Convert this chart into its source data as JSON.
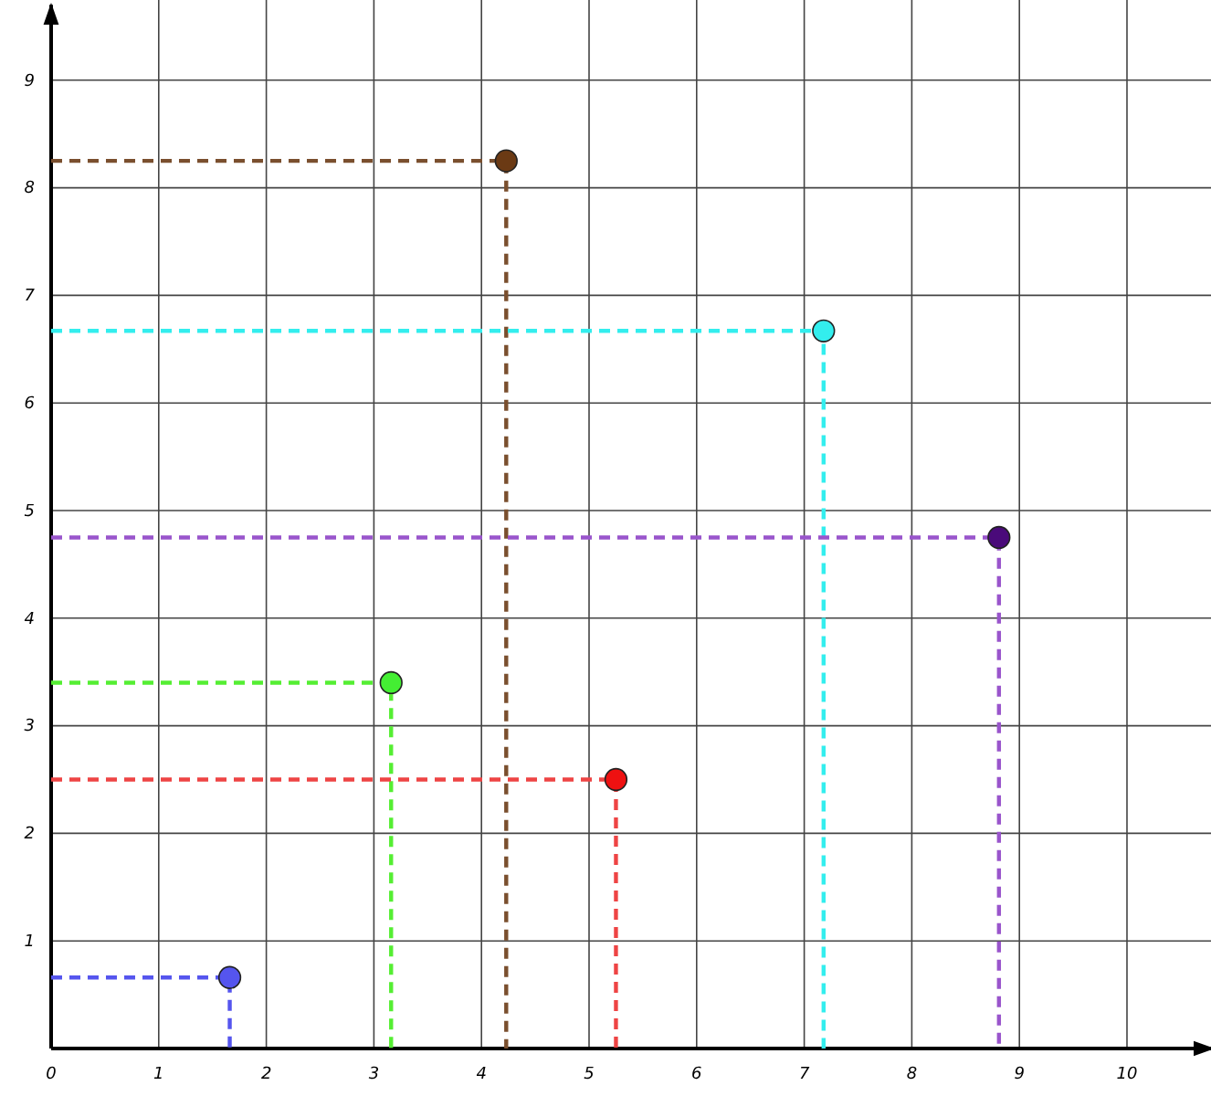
{
  "chart_data": {
    "type": "scatter",
    "xlim": [
      0,
      10.8
    ],
    "ylim": [
      0,
      9.7
    ],
    "xticks": [
      0,
      1,
      2,
      3,
      4,
      5,
      6,
      7,
      8,
      9,
      10
    ],
    "yticks": [
      {
        "value": 0,
        "label": null
      },
      1,
      2,
      3,
      4,
      5,
      6,
      7,
      8,
      9
    ],
    "grid": true,
    "line_style": "dashed",
    "series": [
      {
        "type": "line",
        "color": "#5555ee",
        "x": [
          0,
          1.66,
          1.66
        ],
        "values": [
          0.66,
          0.66,
          0
        ]
      },
      {
        "type": "line",
        "color": "#55ee33",
        "x": [
          0,
          3.16,
          3.16
        ],
        "values": [
          3.4,
          3.4,
          0
        ]
      },
      {
        "type": "line",
        "color": "#7a4f2e",
        "x": [
          0,
          4.23,
          4.23
        ],
        "values": [
          8.25,
          8.25,
          0
        ]
      },
      {
        "type": "line",
        "color": "#ee4444",
        "x": [
          0,
          5.25,
          5.25
        ],
        "values": [
          2.5,
          2.5,
          0
        ]
      },
      {
        "type": "line",
        "color": "#33eeee",
        "x": [
          0,
          7.18,
          7.18
        ],
        "values": [
          6.67,
          6.67,
          0
        ]
      },
      {
        "type": "line",
        "color": "#9955cc",
        "x": [
          0,
          8.81,
          8.81
        ],
        "values": [
          4.75,
          4.75,
          0
        ]
      },
      {
        "marker": "circle",
        "x": [
          1.66,
          3.16,
          4.23,
          5.25,
          7.18,
          8.81
        ],
        "values": [
          0.66,
          3.4,
          8.25,
          2.5,
          6.67,
          4.75
        ],
        "colors": [
          "#5555ee",
          "#44ee33",
          "#6b3a14",
          "#ee1111",
          "#33eeee",
          "#4a0a7a"
        ]
      }
    ]
  }
}
